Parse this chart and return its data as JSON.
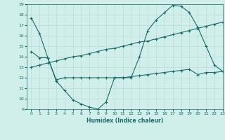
{
  "xlabel": "Humidex (Indice chaleur)",
  "xlim": [
    -0.5,
    23
  ],
  "ylim": [
    9,
    19
  ],
  "xticks": [
    0,
    1,
    2,
    3,
    4,
    5,
    6,
    7,
    8,
    9,
    10,
    11,
    12,
    13,
    14,
    15,
    16,
    17,
    18,
    19,
    20,
    21,
    22,
    23
  ],
  "yticks": [
    9,
    10,
    11,
    12,
    13,
    14,
    15,
    16,
    17,
    18,
    19
  ],
  "bg_color": "#d0eeea",
  "line_color": "#1a6b6b",
  "grid_color": "#b8ddd8",
  "series": [
    {
      "x": [
        0,
        1,
        2,
        3,
        4,
        5,
        6,
        7,
        8,
        9,
        10,
        11,
        12,
        13,
        14,
        15,
        16,
        17,
        18,
        19,
        20,
        21,
        22,
        23
      ],
      "y": [
        17.7,
        16.2,
        13.9,
        11.7,
        10.8,
        9.9,
        9.5,
        9.2,
        9.0,
        9.7,
        12.0,
        12.0,
        12.0,
        14.0,
        16.5,
        17.5,
        18.2,
        18.9,
        18.8,
        18.2,
        16.8,
        15.0,
        13.2,
        12.6
      ]
    },
    {
      "x": [
        0,
        1,
        2,
        3,
        4,
        5,
        6,
        7,
        8,
        9,
        10,
        11,
        12,
        13,
        14,
        15,
        16,
        17,
        18,
        19,
        20,
        21,
        22,
        23
      ],
      "y": [
        14.5,
        13.9,
        13.9,
        11.8,
        12.0,
        12.0,
        12.0,
        12.0,
        12.0,
        12.0,
        12.0,
        12.0,
        12.1,
        12.2,
        12.3,
        12.4,
        12.5,
        12.6,
        12.7,
        12.8,
        12.3,
        12.5,
        12.5,
        12.6
      ]
    },
    {
      "x": [
        0,
        1,
        2,
        3,
        4,
        5,
        6,
        7,
        8,
        9,
        10,
        11,
        12,
        13,
        14,
        15,
        16,
        17,
        18,
        19,
        20,
        21,
        22,
        23
      ],
      "y": [
        13.0,
        13.2,
        13.4,
        13.6,
        13.8,
        14.0,
        14.1,
        14.3,
        14.5,
        14.7,
        14.8,
        15.0,
        15.2,
        15.4,
        15.5,
        15.7,
        15.9,
        16.1,
        16.3,
        16.5,
        16.7,
        16.9,
        17.1,
        17.3
      ]
    }
  ]
}
